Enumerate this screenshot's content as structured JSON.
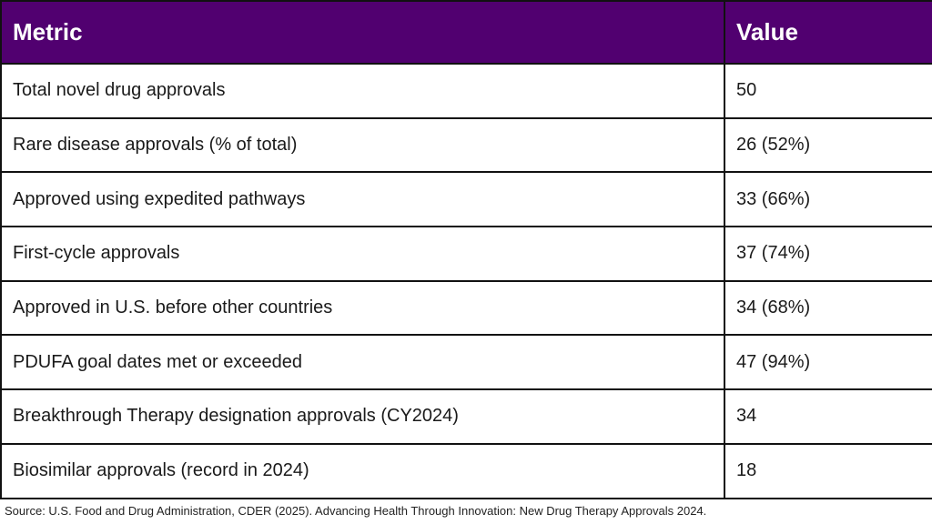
{
  "table": {
    "headers": {
      "metric": "Metric",
      "value": "Value"
    },
    "rows": [
      {
        "metric": "Total novel drug approvals",
        "value": "50"
      },
      {
        "metric": "Rare disease approvals (% of total)",
        "value": "26 (52%)"
      },
      {
        "metric": "Approved using expedited pathways",
        "value": "33 (66%)"
      },
      {
        "metric": "First-cycle approvals",
        "value": "37 (74%)"
      },
      {
        "metric": "Approved in U.S. before other countries",
        "value": "34 (68%)"
      },
      {
        "metric": "PDUFA goal dates met or exceeded",
        "value": "47 (94%)"
      },
      {
        "metric": "Breakthrough Therapy designation approvals (CY2024)",
        "value": "34"
      },
      {
        "metric": "Biosimilar approvals (record in 2024)",
        "value": "18"
      }
    ]
  },
  "source": "Source: U.S. Food and Drug Administration, CDER (2025). Advancing Health Through Innovation: New Drug Therapy Approvals 2024.",
  "colors": {
    "header_background": "#510070",
    "header_text": "#ffffff",
    "border": "#111111"
  }
}
